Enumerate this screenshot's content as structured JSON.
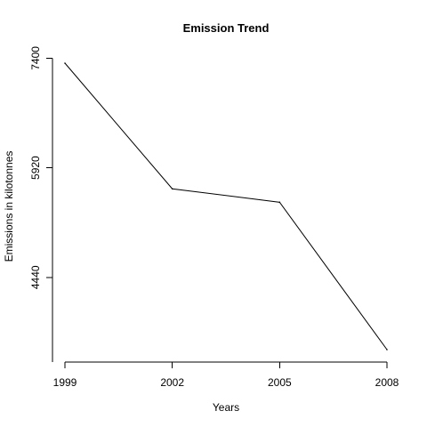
{
  "chart_data": {
    "type": "line",
    "title": "Emission Trend",
    "xlabel": "Years",
    "ylabel": "Emissions in kilotonnes",
    "x": [
      1999,
      2002,
      2005,
      2008
    ],
    "values": [
      7332.97,
      5635.86,
      5454.72,
      3464.21
    ],
    "xticks": [
      "1999",
      "2002",
      "2005",
      "2008"
    ],
    "yticks": [
      "4440",
      "5920",
      "7400"
    ],
    "xlim": [
      1999,
      2008
    ],
    "ylim": [
      3464.21,
      7332.97
    ],
    "grid": false,
    "line_color": "#000000"
  }
}
